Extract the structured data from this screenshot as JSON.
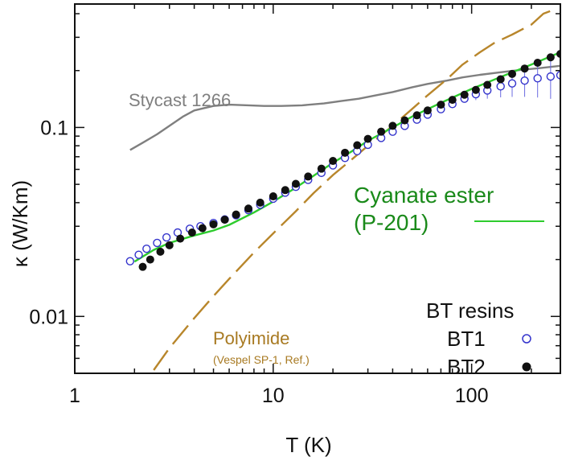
{
  "chart_data": {
    "type": "line",
    "title": "",
    "xlabel": "T  (K)",
    "ylabel": "κ  (W/Km)",
    "xscale": "log",
    "yscale": "log",
    "xlim": [
      1,
      280
    ],
    "ylim": [
      0.005,
      0.45
    ],
    "x_ticks": [
      {
        "value": 1,
        "label": "1"
      },
      {
        "value": 10,
        "label": "10"
      },
      {
        "value": 100,
        "label": "100"
      }
    ],
    "y_ticks": [
      {
        "value": 0.01,
        "label": "0.01"
      },
      {
        "value": 0.1,
        "label": "0.1"
      }
    ],
    "legend": {
      "title": "BT resins",
      "position": "bottom-right"
    },
    "series": [
      {
        "name": "Stycast 1266",
        "style": "line",
        "color": "#7f7f7f",
        "x": [
          1.9,
          2.2,
          2.6,
          3.0,
          3.5,
          4.0,
          5.0,
          6.0,
          7.5,
          9.0,
          11.0,
          14.0,
          18.0,
          22.0,
          27.0,
          33.0,
          40.0,
          50.0,
          60.0,
          75.0,
          90.0,
          110.0,
          140.0,
          180.0,
          220.0,
          280.0
        ],
        "y": [
          0.076,
          0.083,
          0.092,
          0.102,
          0.114,
          0.123,
          0.13,
          0.132,
          0.131,
          0.13,
          0.13,
          0.131,
          0.134,
          0.138,
          0.142,
          0.148,
          0.154,
          0.163,
          0.17,
          0.177,
          0.184,
          0.19,
          0.196,
          0.202,
          0.206,
          0.212
        ]
      },
      {
        "name": "Polyimide",
        "annotation": "(Vespel SP-1, Ref.)",
        "style": "dashed",
        "color": "#b8862b",
        "x": [
          2.5,
          3.0,
          4.0,
          5.0,
          6.0,
          8.0,
          10.0,
          13.0,
          16.0,
          20.0,
          25.0,
          30.0,
          40.0,
          50.0,
          60.0,
          75.0,
          90.0,
          110.0,
          130.0,
          160.0,
          200.0,
          230.0,
          260.0
        ],
        "y": [
          0.0052,
          0.0068,
          0.0098,
          0.0128,
          0.0158,
          0.0218,
          0.0275,
          0.036,
          0.045,
          0.056,
          0.068,
          0.08,
          0.102,
          0.125,
          0.148,
          0.18,
          0.215,
          0.25,
          0.28,
          0.31,
          0.35,
          0.4,
          0.42
        ]
      },
      {
        "name": "Cyanate ester (P-201)",
        "style": "line",
        "color": "#2ecc2e",
        "x": [
          2.0,
          2.5,
          3.0,
          4.0,
          5.0,
          6.0,
          8.0,
          10.0,
          13.0,
          17.0,
          20.0,
          25.0,
          30.0,
          40.0,
          50.0,
          70.0,
          100.0,
          140.0,
          200.0,
          280.0
        ],
        "y": [
          0.0195,
          0.0225,
          0.0245,
          0.0268,
          0.0285,
          0.0305,
          0.0355,
          0.0405,
          0.048,
          0.058,
          0.065,
          0.075,
          0.085,
          0.1,
          0.114,
          0.135,
          0.16,
          0.185,
          0.215,
          0.25
        ]
      },
      {
        "name": "BT1",
        "style": "open-circle",
        "color": "#3333cc",
        "x": [
          1.9,
          2.1,
          2.3,
          2.6,
          2.9,
          3.3,
          3.8,
          4.3,
          5.0,
          5.7,
          6.5,
          7.5,
          8.6,
          10.0,
          11.5,
          13.0,
          15.0,
          17.5,
          20.0,
          23.0,
          26.5,
          30.0,
          35.0,
          40.0,
          46.0,
          53.0,
          60.0,
          70.0,
          80.0,
          92.0,
          105.0,
          120.0,
          140.0,
          160.0,
          185.0,
          215.0,
          250.0,
          280.0
        ],
        "y": [
          0.0196,
          0.0212,
          0.0228,
          0.0245,
          0.0262,
          0.0278,
          0.0291,
          0.03,
          0.0312,
          0.0326,
          0.0343,
          0.0365,
          0.039,
          0.042,
          0.0452,
          0.0485,
          0.0528,
          0.0575,
          0.063,
          0.069,
          0.075,
          0.081,
          0.088,
          0.095,
          0.102,
          0.11,
          0.117,
          0.125,
          0.133,
          0.142,
          0.15,
          0.157,
          0.165,
          0.171,
          0.177,
          0.182,
          0.186,
          0.189
        ]
      },
      {
        "name": "BT2",
        "style": "filled-circle",
        "color": "#111111",
        "x": [
          2.2,
          2.4,
          2.7,
          3.0,
          3.4,
          3.9,
          4.4,
          5.0,
          5.7,
          6.5,
          7.5,
          8.6,
          10.0,
          11.5,
          13.0,
          15.0,
          17.5,
          20.0,
          23.0,
          26.5,
          30.0,
          35.0,
          40.0,
          46.0,
          53.0,
          60.0,
          70.0,
          80.0,
          92.0,
          105.0,
          120.0,
          140.0,
          160.0,
          185.0,
          215.0,
          250.0,
          280.0
        ],
        "y": [
          0.0183,
          0.02,
          0.022,
          0.0238,
          0.0258,
          0.0278,
          0.0293,
          0.0307,
          0.0325,
          0.0346,
          0.0372,
          0.04,
          0.0432,
          0.0466,
          0.0503,
          0.055,
          0.0605,
          0.0665,
          0.0735,
          0.0805,
          0.087,
          0.095,
          0.102,
          0.109,
          0.116,
          0.123,
          0.132,
          0.14,
          0.149,
          0.158,
          0.168,
          0.18,
          0.192,
          0.205,
          0.22,
          0.235,
          0.245
        ]
      }
    ],
    "annotations": [
      {
        "text": "Stycast 1266",
        "color": "#7f7f7f"
      },
      {
        "text": "Cyanate ester",
        "color": "#1a8a1a"
      },
      {
        "text": "(P-201)",
        "color": "#1a8a1a"
      },
      {
        "text": "Polyimide",
        "color": "#a87a22"
      },
      {
        "text": "(Vespel SP-1, Ref.)",
        "color": "#a87a22"
      }
    ]
  }
}
